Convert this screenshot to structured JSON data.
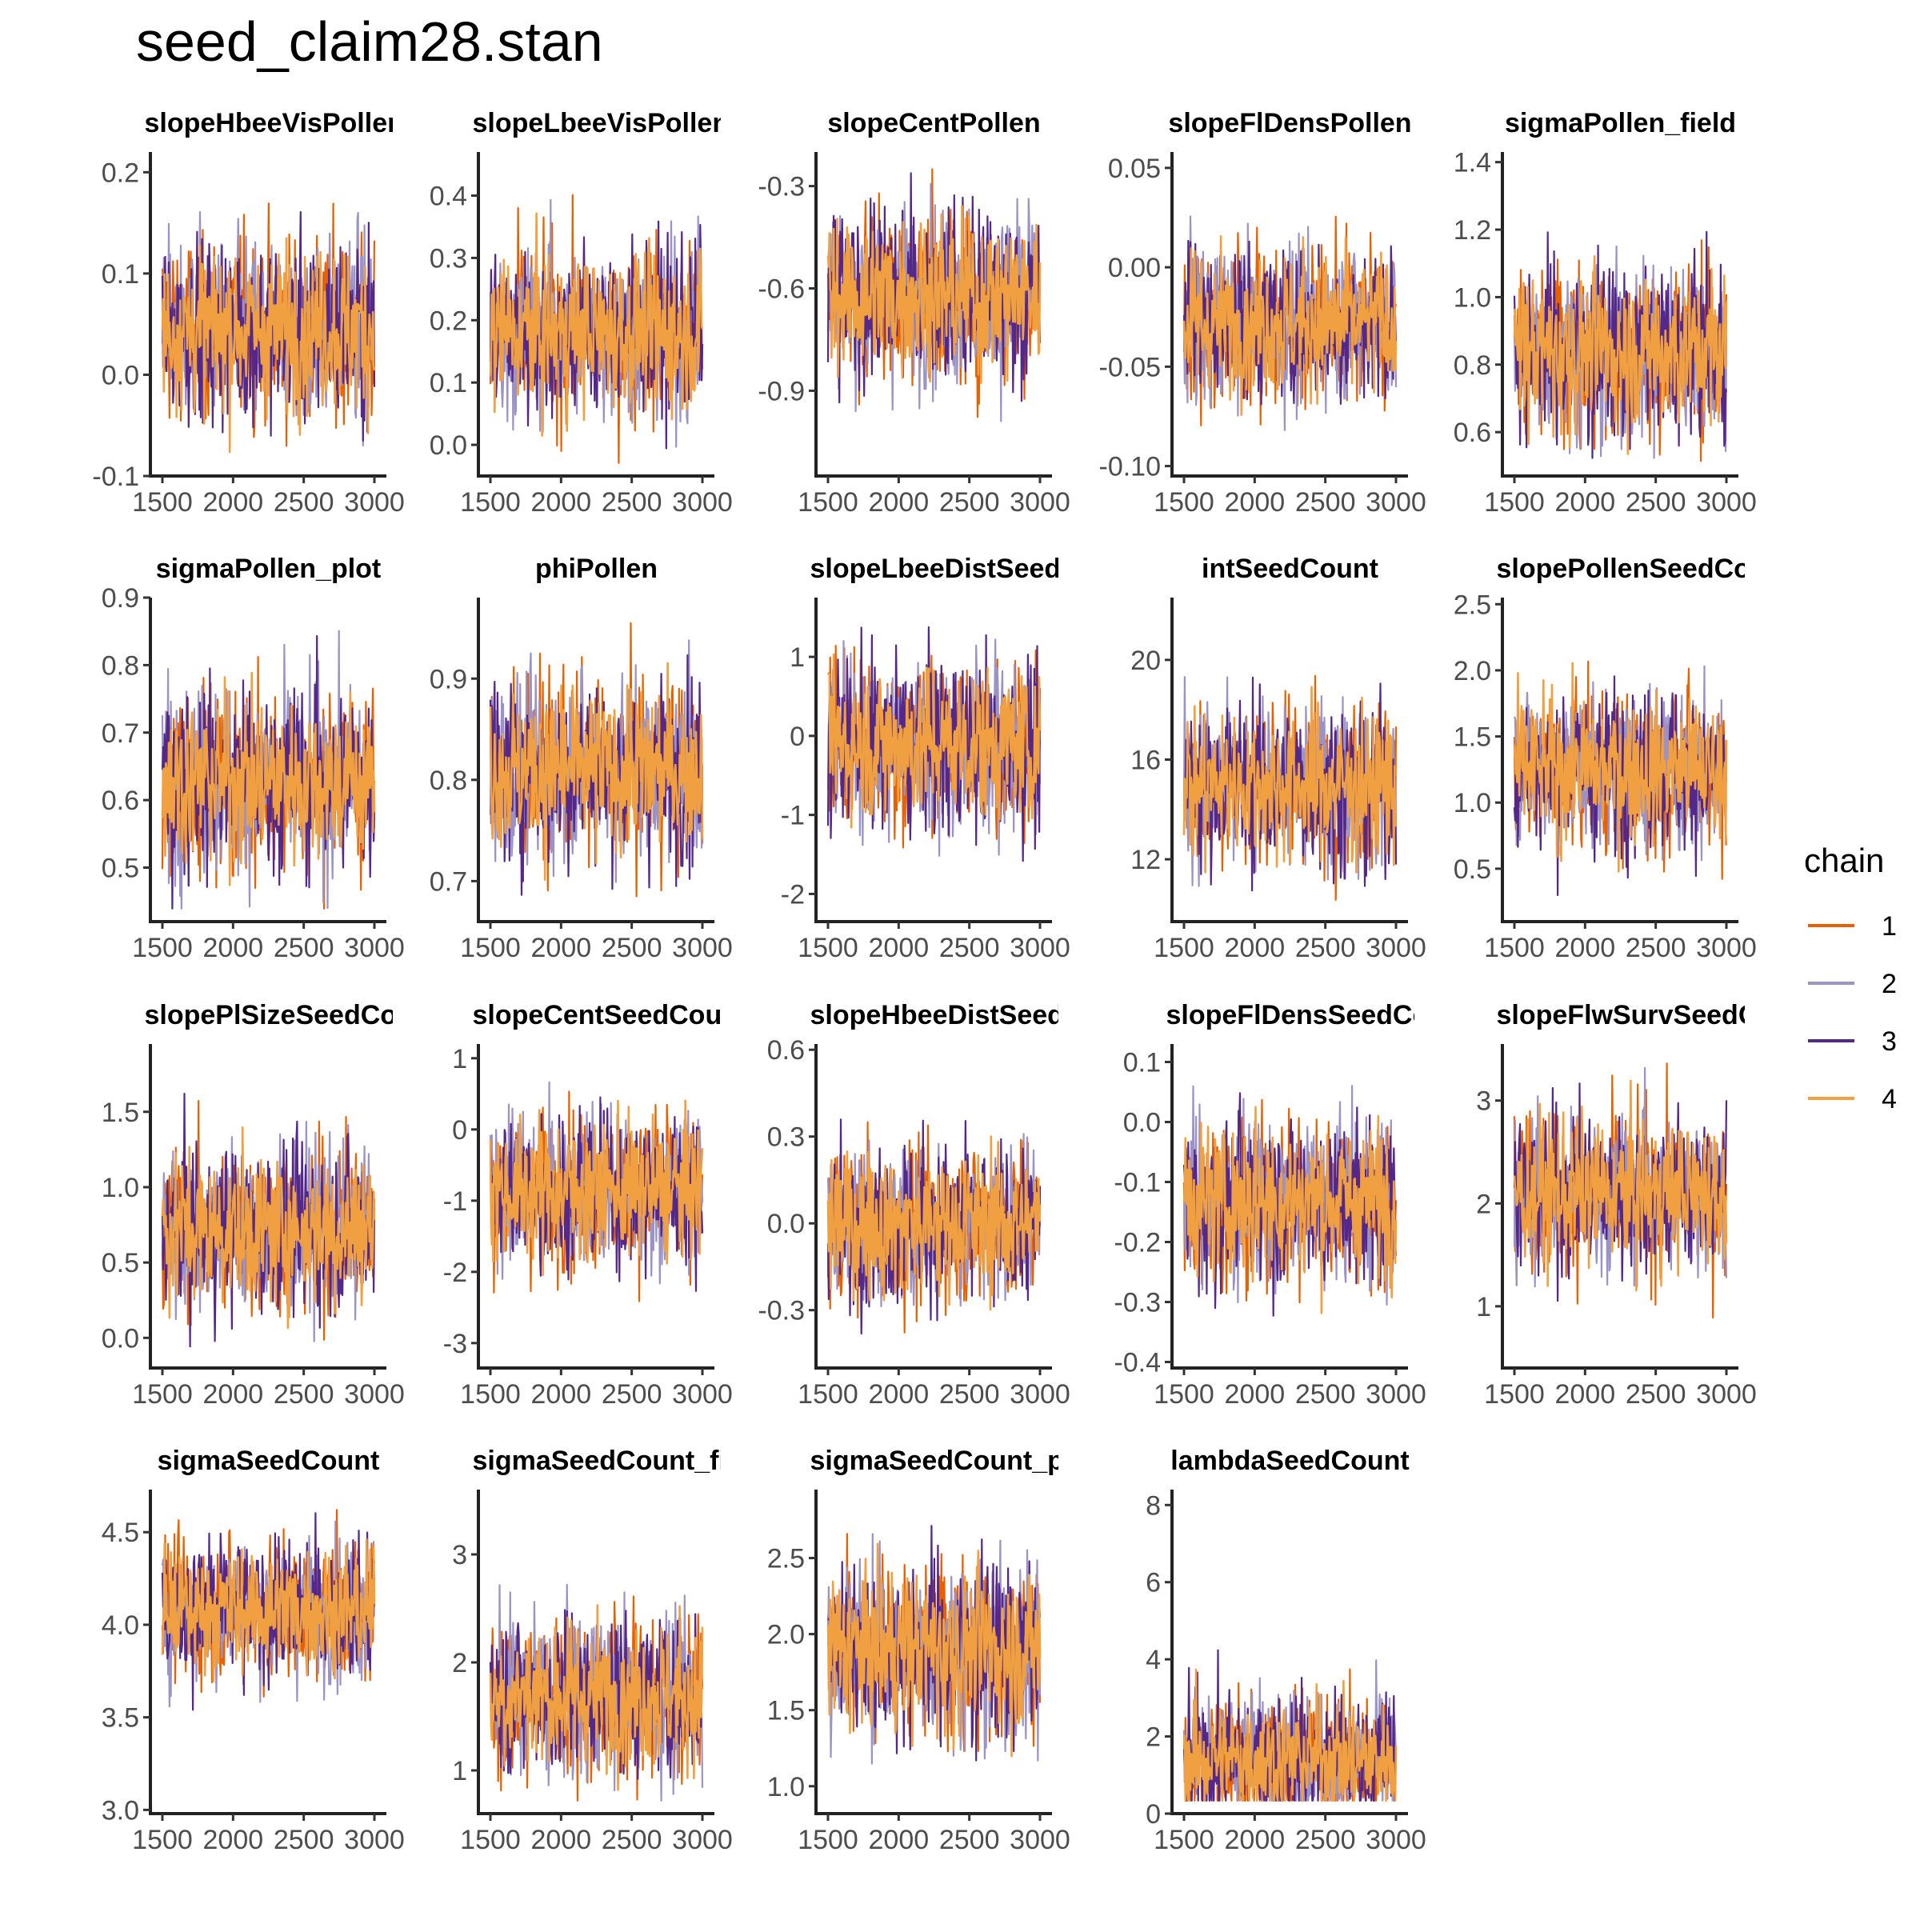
{
  "chart_data": {
    "type": "line",
    "title": "seed_claim28.stan",
    "x_ticks": [
      1500,
      2000,
      2500,
      3000
    ],
    "xlim": [
      1500,
      3000
    ],
    "legend": {
      "title": "chain",
      "placement": "right",
      "entries": [
        {
          "label": "1",
          "color": "#e66101"
        },
        {
          "label": "2",
          "color": "#9b92c6"
        },
        {
          "label": "3",
          "color": "#542788"
        },
        {
          "label": "4",
          "color": "#f0a040"
        }
      ]
    },
    "panels": [
      {
        "title": "slopeHbeeVisPollen",
        "ylim": [
          -0.1,
          0.22
        ],
        "y_ticks": [
          "-0.1",
          "0.0",
          "0.1",
          "0.2"
        ],
        "center": 0.045,
        "spread": 0.045
      },
      {
        "title": "slopeLbeeVisPollen",
        "ylim": [
          -0.05,
          0.47
        ],
        "y_ticks": [
          "0.0",
          "0.1",
          "0.2",
          "0.3",
          "0.4"
        ],
        "center": 0.18,
        "spread": 0.07
      },
      {
        "title": "slopeCentPollen",
        "ylim": [
          -1.15,
          -0.2
        ],
        "y_ticks": [
          "-0.9",
          "-0.6",
          "-0.3"
        ],
        "center": -0.62,
        "spread": 0.13
      },
      {
        "title": "slopeFlDensPollen",
        "ylim": [
          -0.105,
          0.058
        ],
        "y_ticks": [
          "-0.10",
          "-0.05",
          "0.00",
          "0.05"
        ],
        "center": -0.028,
        "spread": 0.02
      },
      {
        "title": "sigmaPollen_field",
        "ylim": [
          0.47,
          1.43
        ],
        "y_ticks": [
          "0.6",
          "0.8",
          "1.0",
          "1.2",
          "1.4"
        ],
        "center": 0.84,
        "spread": 0.13
      },
      {
        "title": "sigmaPollen_plot",
        "ylim": [
          0.42,
          0.9
        ],
        "y_ticks": [
          "0.5",
          "0.6",
          "0.7",
          "0.8",
          "0.9"
        ],
        "center": 0.63,
        "spread": 0.07
      },
      {
        "title": "phiPollen",
        "ylim": [
          0.66,
          0.98
        ],
        "y_ticks": [
          "0.7",
          "0.8",
          "0.9"
        ],
        "center": 0.81,
        "spread": 0.045
      },
      {
        "title": "slopeLbeeDistSeedCount",
        "ylim": [
          -2.35,
          1.75
        ],
        "y_ticks": [
          "-2",
          "-1",
          "0",
          "1"
        ],
        "center": -0.1,
        "spread": 0.55
      },
      {
        "title": "intSeedCount",
        "ylim": [
          9.5,
          22.5
        ],
        "y_ticks": [
          "12",
          "16",
          "20"
        ],
        "center": 15,
        "spread": 1.7
      },
      {
        "title": "slopePollenSeedCount",
        "ylim": [
          0.1,
          2.55
        ],
        "y_ticks": [
          "0.5",
          "1.0",
          "1.5",
          "2.0",
          "2.5"
        ],
        "center": 1.25,
        "spread": 0.3
      },
      {
        "title": "slopePlSizeSeedCount",
        "ylim": [
          -0.2,
          1.95
        ],
        "y_ticks": [
          "0.0",
          "0.5",
          "1.0",
          "1.5"
        ],
        "center": 0.72,
        "spread": 0.28
      },
      {
        "title": "slopeCentSeedCount",
        "ylim": [
          -3.35,
          1.2
        ],
        "y_ticks": [
          "-3",
          "-2",
          "-1",
          "0",
          "1"
        ],
        "center": -0.85,
        "spread": 0.55
      },
      {
        "title": "slopeHbeeDistSeedCount",
        "ylim": [
          -0.5,
          0.62
        ],
        "y_ticks": [
          "-0.3",
          "0.0",
          "0.3",
          "0.6"
        ],
        "center": 0.0,
        "spread": 0.14
      },
      {
        "title": "slopeFlDensSeedCount",
        "ylim": [
          -0.41,
          0.13
        ],
        "y_ticks": [
          "-0.4",
          "-0.3",
          "-0.2",
          "-0.1",
          "0.0",
          "0.1"
        ],
        "center": -0.13,
        "spread": 0.07
      },
      {
        "title": "slopeFlwSurvSeedCount",
        "ylim": [
          0.4,
          3.55
        ],
        "y_ticks": [
          "1",
          "2",
          "3"
        ],
        "center": 2.1,
        "spread": 0.4
      },
      {
        "title": "sigmaSeedCount",
        "ylim": [
          2.98,
          4.73
        ],
        "y_ticks": [
          "3.0",
          "3.5",
          "4.0",
          "4.5"
        ],
        "center": 4.08,
        "spread": 0.19
      },
      {
        "title": "sigmaSeedCount_field",
        "ylim": [
          0.6,
          3.6
        ],
        "y_ticks": [
          "1",
          "2",
          "3"
        ],
        "center": 1.7,
        "spread": 0.38
      },
      {
        "title": "sigmaSeedCount_plot",
        "ylim": [
          0.82,
          2.95
        ],
        "y_ticks": [
          "1.0",
          "1.5",
          "2.0",
          "2.5"
        ],
        "center": 1.9,
        "spread": 0.3
      },
      {
        "title": "lambdaSeedCount",
        "ylim": [
          0,
          8.4
        ],
        "y_ticks": [
          "0",
          "2",
          "4",
          "6",
          "8"
        ],
        "center": 1.4,
        "spread": 0.9
      }
    ]
  }
}
